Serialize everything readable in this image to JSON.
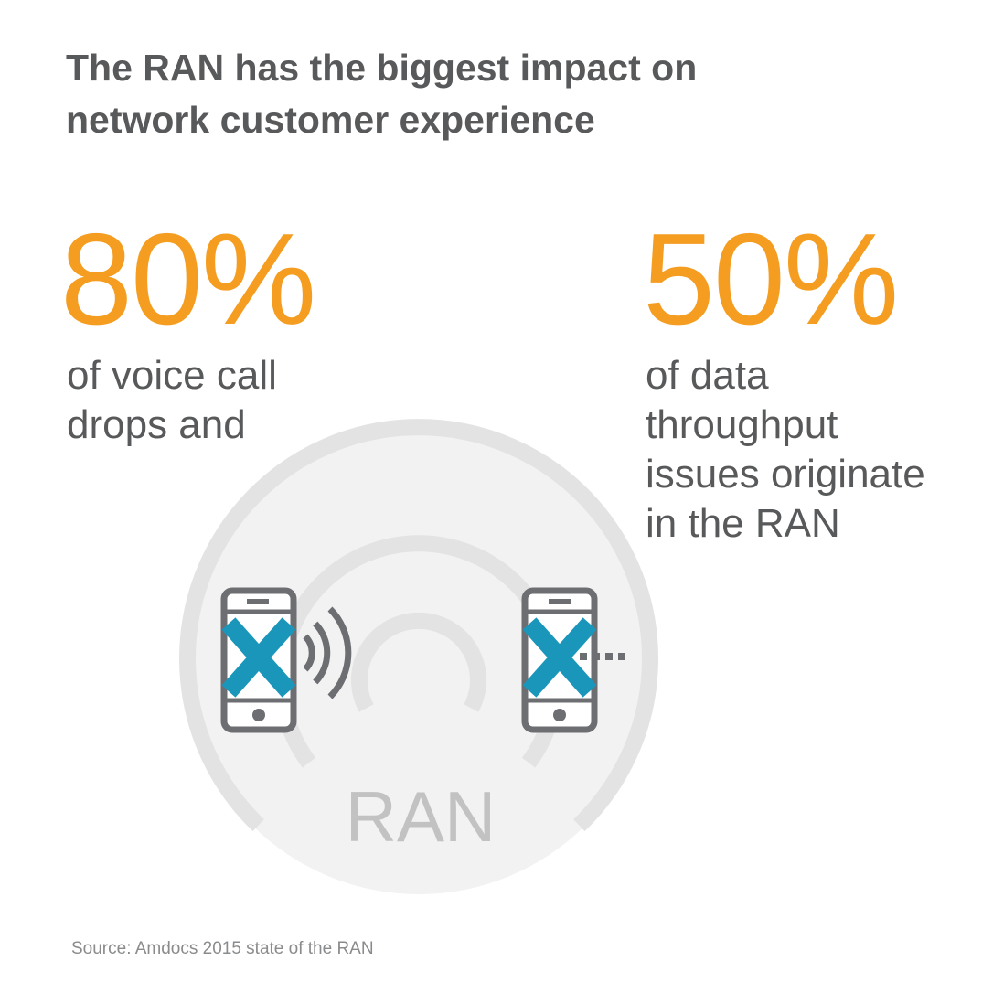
{
  "title": {
    "line1": "The RAN has the biggest impact on",
    "line2": "network customer experience"
  },
  "stats": [
    {
      "value": "80%",
      "lines": [
        "of voice call",
        "drops and"
      ]
    },
    {
      "value": "50%",
      "lines": [
        "of data",
        "throughput",
        "issues originate",
        "in the RAN"
      ]
    }
  ],
  "diagram": {
    "center_label": "RAN",
    "left_icon": "phone-call-dropped-icon",
    "right_icon": "phone-data-failed-icon",
    "signal_icon": "signal-waves-icon"
  },
  "source": "Source: Amdocs 2015 state of the RAN",
  "colors": {
    "accent_orange": "#f49d20",
    "text_gray": "#58595b",
    "circle_fill": "#f2f2f2",
    "ring_gray": "#e3e3e3",
    "phone_outline": "#6d6e71",
    "x_blue": "#1b96bb"
  }
}
